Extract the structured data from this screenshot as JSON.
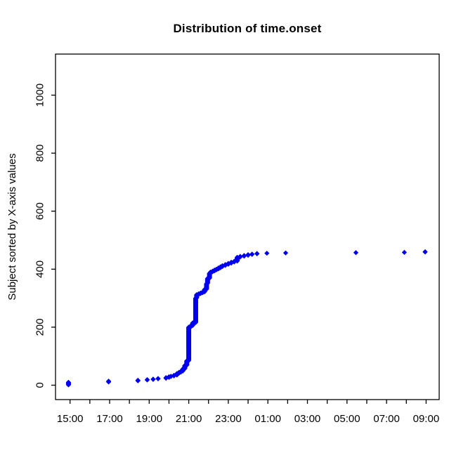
{
  "chart_data": {
    "type": "scatter",
    "title": "Distribution of time.onset",
    "xlabel": "",
    "ylabel": "Subject sorted by X-axis values",
    "marker": "filled-diamond",
    "point_color": "#0000EE",
    "axis_color": "#000000",
    "background_color": "#FFFFFF",
    "grid": false,
    "legend": "none",
    "x_axis": {
      "unit": "time of day (24h, wraps past midnight)",
      "tick_start_hour": 15,
      "tick_end_hour": 33,
      "tick_step_hours": 1,
      "labeled_every_hours": 2,
      "tick_labels": [
        "15:00",
        "17:00",
        "19:00",
        "21:00",
        "23:00",
        "01:00",
        "03:00",
        "05:00",
        "07:00",
        "09:00"
      ]
    },
    "y_axis": {
      "ticks": [
        0,
        200,
        400,
        600,
        800,
        1000
      ],
      "range": [
        -50,
        1141
      ]
    },
    "n_subjects": 460,
    "ecdf_knots": [
      [
        14.92,
        10
      ],
      [
        16.95,
        14
      ],
      [
        18.43,
        17
      ],
      [
        18.9,
        19
      ],
      [
        19.2,
        21
      ],
      [
        19.45,
        23
      ],
      [
        19.85,
        26
      ],
      [
        20.0,
        29
      ],
      [
        20.1,
        31
      ],
      [
        20.25,
        34
      ],
      [
        20.4,
        40
      ],
      [
        20.5,
        44
      ],
      [
        20.6,
        48
      ],
      [
        20.7,
        56
      ],
      [
        20.8,
        68
      ],
      [
        20.9,
        84
      ],
      [
        21.0,
        200
      ],
      [
        21.1,
        205
      ],
      [
        21.2,
        215
      ],
      [
        21.35,
        300
      ],
      [
        21.4,
        312
      ],
      [
        21.5,
        315
      ],
      [
        21.6,
        318
      ],
      [
        21.7,
        321
      ],
      [
        21.8,
        330
      ],
      [
        21.9,
        350
      ],
      [
        21.95,
        368
      ],
      [
        22.05,
        386
      ],
      [
        22.1,
        390
      ],
      [
        22.2,
        393
      ],
      [
        22.3,
        397
      ],
      [
        22.4,
        400
      ],
      [
        22.5,
        404
      ],
      [
        22.6,
        408
      ],
      [
        22.7,
        412
      ],
      [
        22.85,
        416
      ],
      [
        23.0,
        420
      ],
      [
        23.15,
        424
      ],
      [
        23.3,
        427
      ],
      [
        23.45,
        441
      ],
      [
        23.6,
        444
      ],
      [
        23.8,
        447
      ],
      [
        24.0,
        450
      ],
      [
        24.2,
        452
      ],
      [
        24.45,
        454
      ],
      [
        24.95,
        455
      ],
      [
        25.9,
        456
      ],
      [
        29.45,
        457
      ],
      [
        31.9,
        458
      ],
      [
        32.95,
        460
      ]
    ]
  }
}
